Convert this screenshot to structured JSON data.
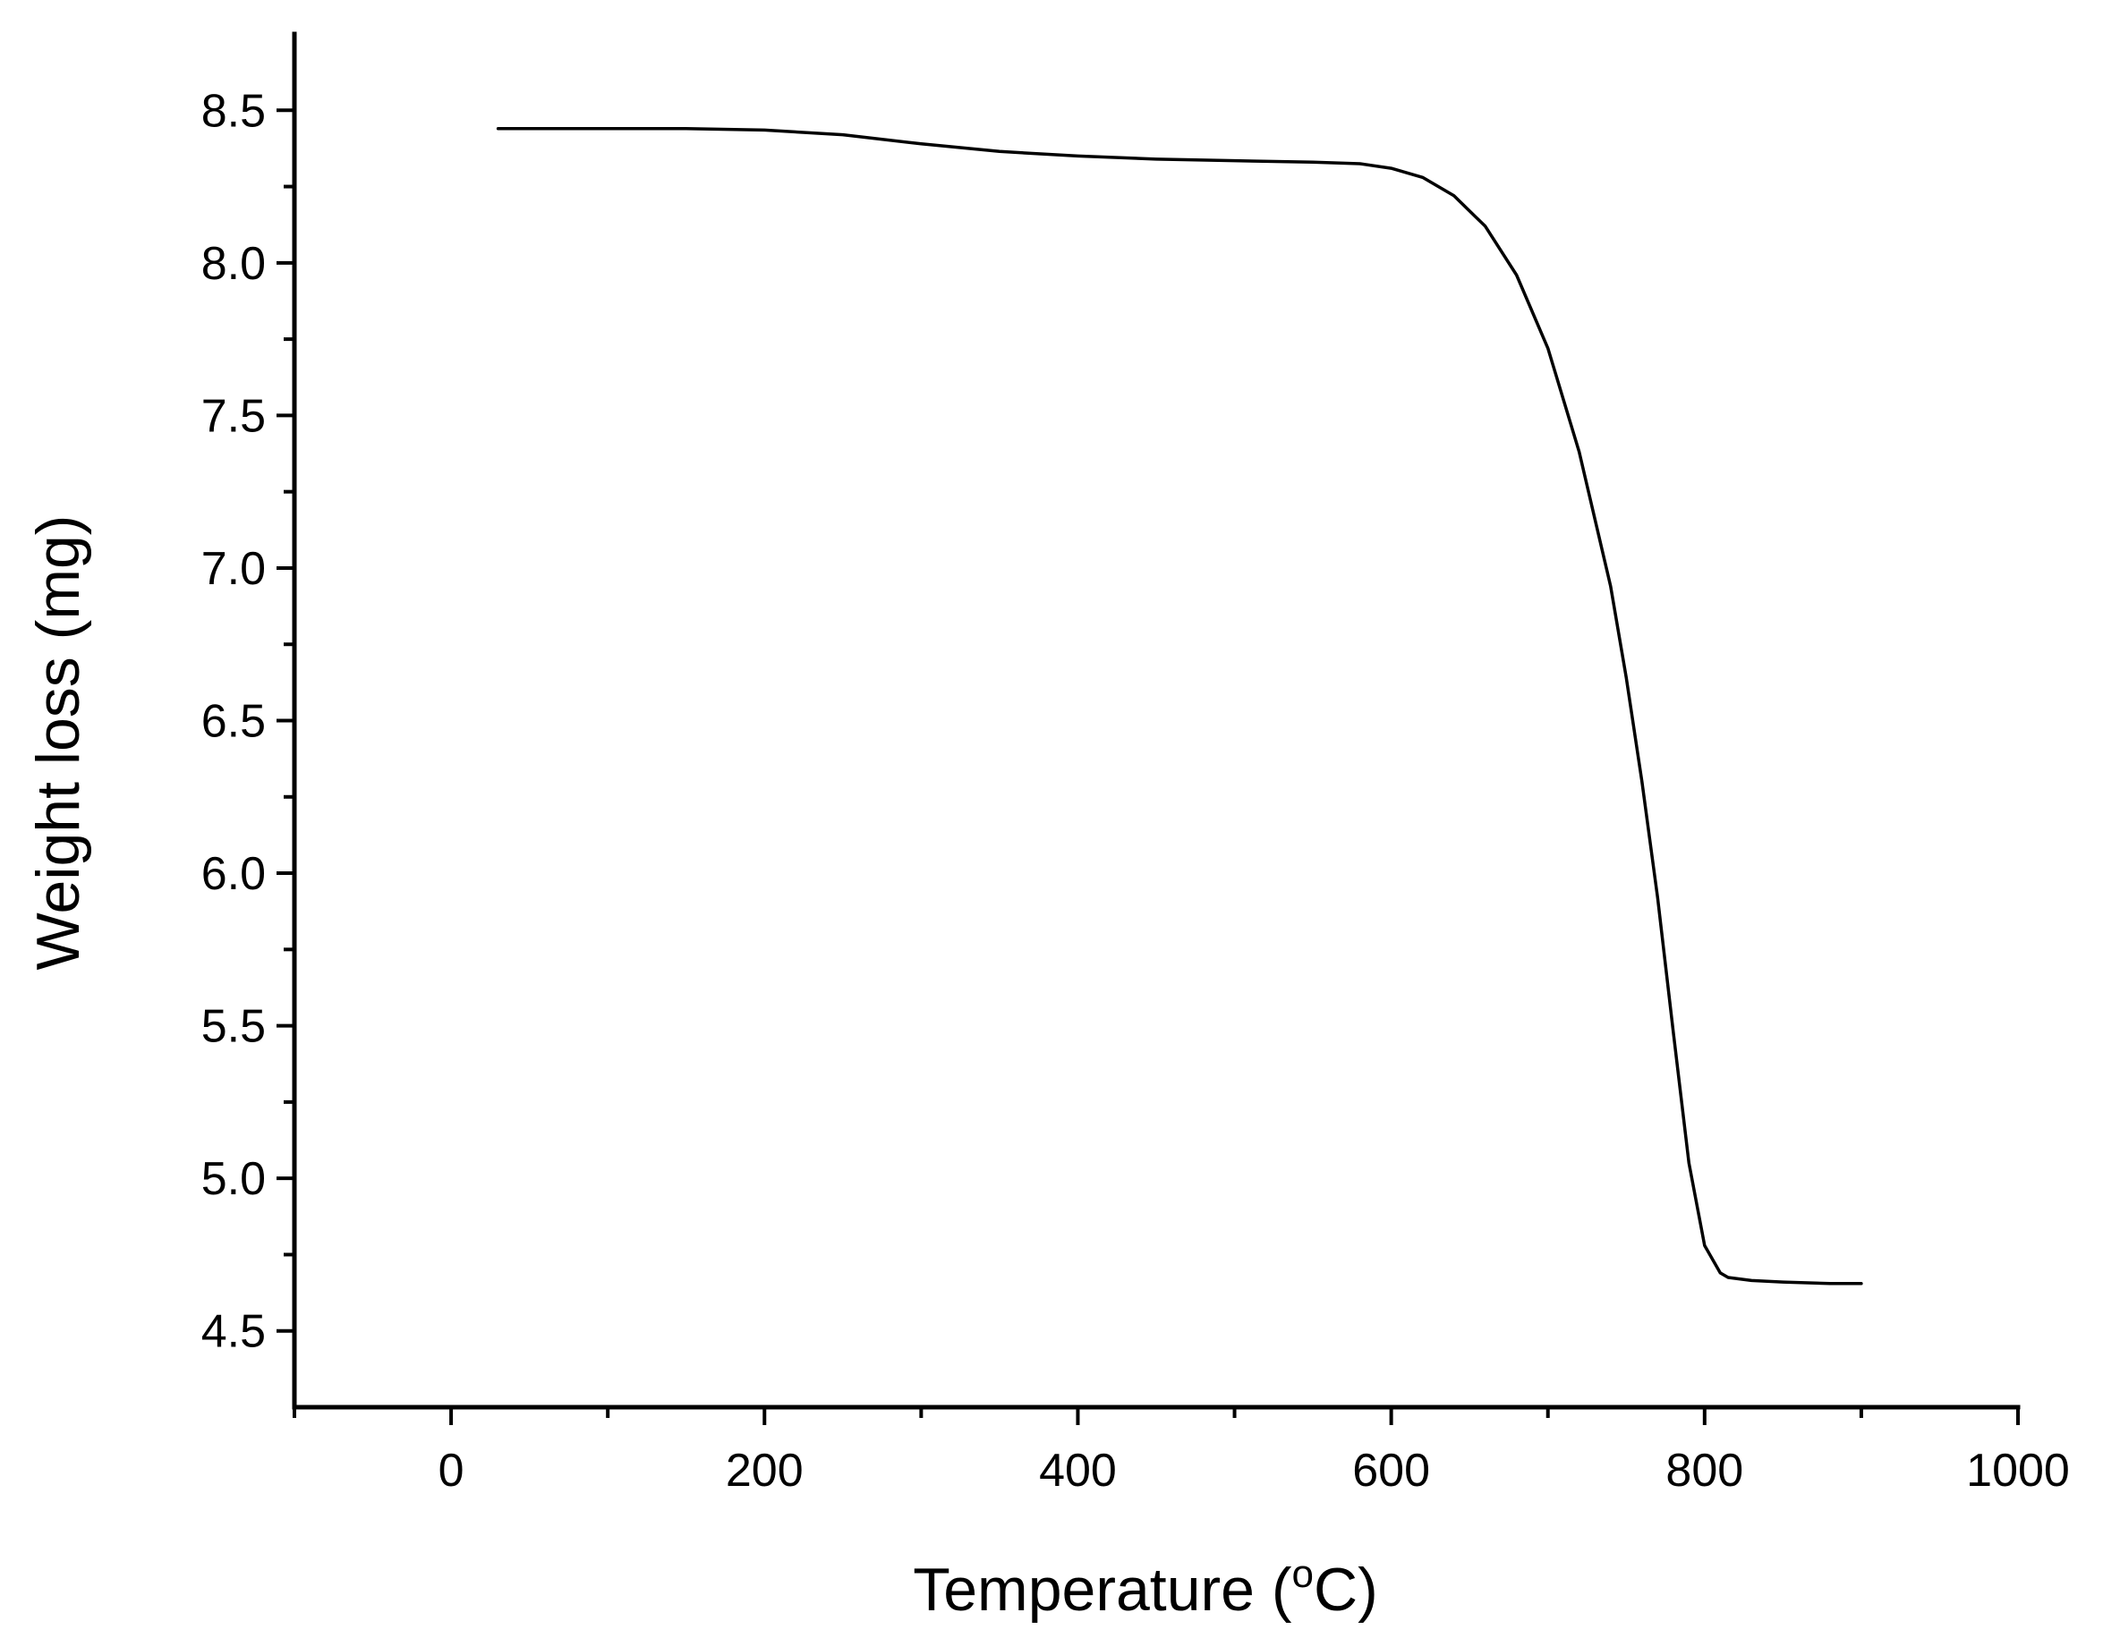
{
  "chart_data": {
    "type": "line",
    "title": "",
    "xlabel": {
      "prefix": "Temperature (",
      "superscript": "o",
      "suffix": "C)"
    },
    "ylabel": "Weight loss (mg)",
    "xlim": [
      -100,
      1000
    ],
    "ylim": [
      4.25,
      8.75
    ],
    "x_ticks": [
      0,
      200,
      400,
      600,
      800,
      1000
    ],
    "x_tick_labels": [
      "0",
      "200",
      "400",
      "600",
      "800",
      "1000"
    ],
    "x_minor_ticks": [
      -100,
      100,
      300,
      500,
      700,
      900
    ],
    "y_ticks": [
      4.5,
      5.0,
      5.5,
      6.0,
      6.5,
      7.0,
      7.5,
      8.0,
      8.5
    ],
    "y_tick_labels": [
      "4.5",
      "5.0",
      "5.5",
      "6.0",
      "6.5",
      "7.0",
      "7.5",
      "8.0",
      "8.5"
    ],
    "y_minor_ticks": [
      4.75,
      5.25,
      5.75,
      6.25,
      6.75,
      7.25,
      7.75,
      8.25
    ],
    "grid": false,
    "legend": "none",
    "series": [
      {
        "color": "#000000",
        "x": [
          30,
          100,
          150,
          200,
          250,
          300,
          350,
          400,
          450,
          500,
          550,
          580,
          600,
          620,
          640,
          660,
          680,
          700,
          720,
          740,
          750,
          760,
          770,
          780,
          790,
          800,
          810,
          815,
          830,
          850,
          880,
          900
        ],
        "y": [
          8.44,
          8.44,
          8.44,
          8.435,
          8.42,
          8.39,
          8.365,
          8.35,
          8.34,
          8.335,
          8.33,
          8.325,
          8.31,
          8.28,
          8.22,
          8.12,
          7.96,
          7.72,
          7.38,
          6.94,
          6.64,
          6.3,
          5.92,
          5.48,
          5.05,
          4.78,
          4.69,
          4.675,
          4.665,
          4.66,
          4.655,
          4.655
        ]
      }
    ]
  }
}
